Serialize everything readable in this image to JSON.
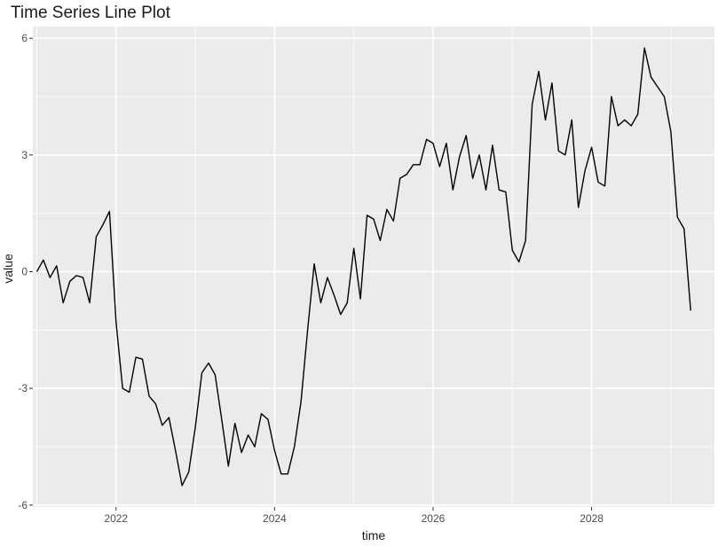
{
  "chart_data": {
    "type": "line",
    "title": "Time Series Line Plot",
    "xlabel": "time",
    "ylabel": "value",
    "xlim": [
      2020.95,
      2029.55
    ],
    "ylim": [
      -6.05,
      6.3
    ],
    "xticks": [
      2022,
      2024,
      2026,
      2028
    ],
    "x_tick_labels": [
      "2022",
      "2024",
      "2026",
      "2028"
    ],
    "yticks": [
      -6,
      -3,
      0,
      3,
      6
    ],
    "y_tick_labels": [
      "-6",
      "-3",
      "0",
      "3",
      "6"
    ],
    "grid": true,
    "background": "#ebebeb",
    "grid_color": "#ffffff",
    "line_color": "#000000",
    "legend": "none",
    "series": [
      {
        "x": [
          2021.0,
          2021.083,
          2021.167,
          2021.25,
          2021.333,
          2021.417,
          2021.5,
          2021.583,
          2021.667,
          2021.75,
          2021.833,
          2021.917,
          2022.0,
          2022.083,
          2022.167,
          2022.25,
          2022.333,
          2022.417,
          2022.5,
          2022.583,
          2022.667,
          2022.75,
          2022.833,
          2022.917,
          2023.0,
          2023.083,
          2023.167,
          2023.25,
          2023.333,
          2023.417,
          2023.5,
          2023.583,
          2023.667,
          2023.75,
          2023.833,
          2023.917,
          2024.0,
          2024.083,
          2024.167,
          2024.25,
          2024.333,
          2024.417,
          2024.5,
          2024.583,
          2024.667,
          2024.75,
          2024.833,
          2024.917,
          2025.0,
          2025.083,
          2025.167,
          2025.25,
          2025.333,
          2025.417,
          2025.5,
          2025.583,
          2025.667,
          2025.75,
          2025.833,
          2025.917,
          2026.0,
          2026.083,
          2026.167,
          2026.25,
          2026.333,
          2026.417,
          2026.5,
          2026.583,
          2026.667,
          2026.75,
          2026.833,
          2026.917,
          2027.0,
          2027.083,
          2027.167,
          2027.25,
          2027.333,
          2027.417,
          2027.5,
          2027.583,
          2027.667,
          2027.75,
          2027.833,
          2027.917,
          2028.0,
          2028.083,
          2028.167,
          2028.25,
          2028.333,
          2028.417,
          2028.5,
          2028.583,
          2028.667,
          2028.75,
          2028.833,
          2028.917,
          2029.0,
          2029.083,
          2029.167,
          2029.25
        ],
        "y": [
          0.0,
          0.3,
          -0.15,
          0.15,
          -0.8,
          -0.25,
          -0.1,
          -0.15,
          -0.8,
          0.9,
          1.2,
          1.55,
          -1.3,
          -3.0,
          -3.1,
          -2.2,
          -2.25,
          -3.2,
          -3.4,
          -3.95,
          -3.75,
          -4.6,
          -5.5,
          -5.15,
          -4.0,
          -2.6,
          -2.35,
          -2.65,
          -3.8,
          -5.0,
          -3.9,
          -4.65,
          -4.2,
          -4.5,
          -3.65,
          -3.8,
          -4.6,
          -5.2,
          -5.2,
          -4.5,
          -3.35,
          -1.5,
          0.2,
          -0.8,
          -0.15,
          -0.6,
          -1.1,
          -0.8,
          0.6,
          -0.7,
          1.45,
          1.35,
          0.8,
          1.6,
          1.3,
          2.4,
          2.5,
          2.75,
          2.75,
          3.4,
          3.3,
          2.7,
          3.3,
          2.1,
          2.95,
          3.5,
          2.4,
          3.0,
          2.1,
          3.25,
          2.1,
          2.05,
          0.55,
          0.25,
          0.8,
          4.3,
          5.15,
          3.9,
          4.85,
          3.1,
          3.0,
          3.9,
          1.65,
          2.6,
          3.2,
          2.3,
          2.2,
          4.5,
          3.75,
          3.9,
          3.75,
          4.05,
          5.75,
          5.0,
          4.75,
          4.5,
          3.6,
          1.4,
          1.1,
          -1.0
        ]
      }
    ]
  }
}
